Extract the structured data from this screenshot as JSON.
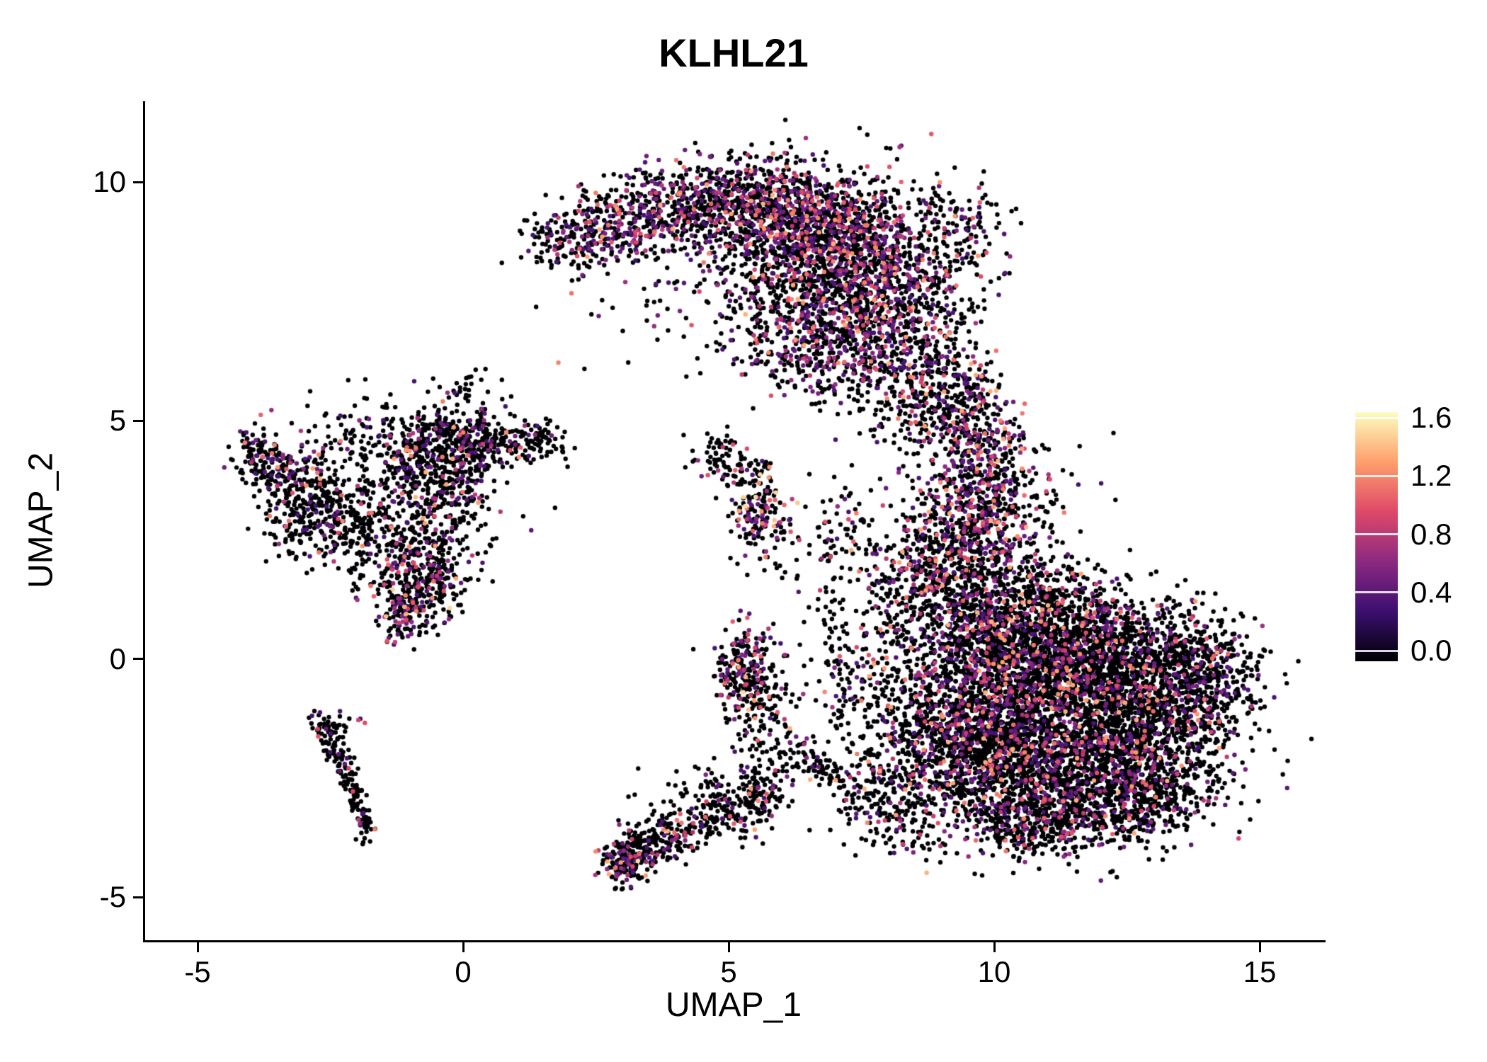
{
  "chart_data": {
    "type": "scatter",
    "title": "KLHL21",
    "xlabel": "UMAP_1",
    "ylabel": "UMAP_2",
    "xlim": [
      -6.0,
      16.2
    ],
    "ylim": [
      -5.9,
      11.7
    ],
    "x_ticks": [
      {
        "v": -5,
        "label": "-5"
      },
      {
        "v": 0,
        "label": "0"
      },
      {
        "v": 5,
        "label": "5"
      },
      {
        "v": 10,
        "label": "10"
      },
      {
        "v": 15,
        "label": "15"
      }
    ],
    "y_ticks": [
      {
        "v": 10,
        "label": "10"
      },
      {
        "v": 5,
        "label": "5"
      },
      {
        "v": 0,
        "label": "0"
      },
      {
        "v": -5,
        "label": "-5"
      }
    ],
    "grid": false,
    "point_radius": 3.2,
    "colorbar": {
      "position": "right",
      "vmin": 0.0,
      "vmax": 1.6,
      "ticks": [
        {
          "v": 1.6,
          "label": "1.6"
        },
        {
          "v": 1.2,
          "label": "1.2"
        },
        {
          "v": 0.8,
          "label": "0.8"
        },
        {
          "v": 0.4,
          "label": "0.4"
        },
        {
          "v": 0.0,
          "label": "0.0"
        }
      ],
      "colormap": "magma",
      "stops": [
        {
          "t": 0.0,
          "c": "#000004"
        },
        {
          "t": 0.2,
          "c": "#3b0f70"
        },
        {
          "t": 0.4,
          "c": "#8c2981"
        },
        {
          "t": 0.6,
          "c": "#de4968"
        },
        {
          "t": 0.8,
          "c": "#fe9f6d"
        },
        {
          "t": 1.0,
          "c": "#fcfdbf"
        }
      ]
    },
    "expression_floor": 0.35,
    "seed": 1337,
    "clusters": [
      {
        "x": 2.0,
        "y": 8.75,
        "sx": 0.45,
        "sy": 0.3,
        "n": 130,
        "p": 0.25
      },
      {
        "x": 3.0,
        "y": 9.1,
        "sx": 0.5,
        "sy": 0.45,
        "n": 220,
        "p": 0.28
      },
      {
        "x": 4.2,
        "y": 9.5,
        "sx": 0.7,
        "sy": 0.45,
        "n": 350,
        "p": 0.3
      },
      {
        "x": 5.5,
        "y": 9.6,
        "sx": 0.7,
        "sy": 0.5,
        "n": 420,
        "p": 0.3
      },
      {
        "x": 6.6,
        "y": 9.2,
        "sx": 0.7,
        "sy": 0.6,
        "n": 500,
        "p": 0.33
      },
      {
        "x": 7.6,
        "y": 8.7,
        "sx": 0.7,
        "sy": 0.7,
        "n": 480,
        "p": 0.33
      },
      {
        "x": 6.1,
        "y": 8.2,
        "sx": 0.9,
        "sy": 0.6,
        "n": 380,
        "p": 0.3
      },
      {
        "x": 7.0,
        "y": 7.4,
        "sx": 0.9,
        "sy": 0.7,
        "n": 430,
        "p": 0.33
      },
      {
        "x": 8.3,
        "y": 7.6,
        "sx": 0.6,
        "sy": 0.8,
        "n": 320,
        "p": 0.33
      },
      {
        "x": 6.4,
        "y": 6.5,
        "sx": 0.7,
        "sy": 0.55,
        "n": 220,
        "p": 0.3
      },
      {
        "x": 7.6,
        "y": 6.2,
        "sx": 0.6,
        "sy": 0.6,
        "n": 200,
        "p": 0.3
      },
      {
        "x": 8.8,
        "y": 6.3,
        "sx": 0.45,
        "sy": 0.8,
        "n": 180,
        "p": 0.28
      },
      {
        "x": 9.3,
        "y": 8.9,
        "sx": 0.45,
        "sy": 0.55,
        "n": 150,
        "p": 0.2
      },
      {
        "x": 4.6,
        "y": 8.2,
        "sx": 1.3,
        "sy": 0.7,
        "n": 60,
        "p": 0.2
      },
      {
        "x": 3.3,
        "y": 7.3,
        "sx": 0.8,
        "sy": 0.7,
        "n": 25,
        "p": 0.15
      },
      {
        "x": 8.4,
        "y": 5.2,
        "sx": 0.5,
        "sy": 0.5,
        "n": 90,
        "p": 0.25
      },
      {
        "x": 9.4,
        "y": 5.4,
        "sx": 0.4,
        "sy": 0.55,
        "n": 150,
        "p": 0.3
      },
      {
        "x": 9.7,
        "y": 4.5,
        "sx": 0.45,
        "sy": 0.6,
        "n": 200,
        "p": 0.35
      },
      {
        "x": 9.8,
        "y": 3.5,
        "sx": 0.5,
        "sy": 0.6,
        "n": 260,
        "p": 0.38
      },
      {
        "x": 9.6,
        "y": 2.5,
        "sx": 0.55,
        "sy": 0.6,
        "n": 280,
        "p": 0.38
      },
      {
        "x": 10.6,
        "y": 3.2,
        "sx": 0.7,
        "sy": 0.9,
        "n": 100,
        "p": 0.22
      },
      {
        "x": 8.8,
        "y": 2.9,
        "sx": 0.5,
        "sy": 0.8,
        "n": 100,
        "p": 0.22
      },
      {
        "x": 8.6,
        "y": 1.7,
        "sx": 0.6,
        "sy": 0.5,
        "n": 140,
        "p": 0.28
      },
      {
        "x": 11.2,
        "y": -1.0,
        "sx": 1.4,
        "sy": 1.0,
        "n": 2200,
        "p": 0.2
      },
      {
        "x": 10.2,
        "y": -2.4,
        "sx": 0.9,
        "sy": 0.7,
        "n": 700,
        "p": 0.2
      },
      {
        "x": 12.2,
        "y": -2.5,
        "sx": 1.0,
        "sy": 0.6,
        "n": 650,
        "p": 0.18
      },
      {
        "x": 13.2,
        "y": -1.2,
        "sx": 0.8,
        "sy": 0.8,
        "n": 550,
        "p": 0.16
      },
      {
        "x": 14.0,
        "y": -0.3,
        "sx": 0.45,
        "sy": 0.6,
        "n": 260,
        "p": 0.14
      },
      {
        "x": 12.4,
        "y": 0.2,
        "sx": 0.9,
        "sy": 0.6,
        "n": 550,
        "p": 0.18
      },
      {
        "x": 11.0,
        "y": 0.4,
        "sx": 0.9,
        "sy": 0.55,
        "n": 520,
        "p": 0.2
      },
      {
        "x": 9.8,
        "y": -0.3,
        "sx": 0.7,
        "sy": 0.9,
        "n": 520,
        "p": 0.24
      },
      {
        "x": 9.0,
        "y": -1.6,
        "sx": 0.6,
        "sy": 0.8,
        "n": 380,
        "p": 0.24
      },
      {
        "x": 9.4,
        "y": 1.2,
        "sx": 0.7,
        "sy": 0.6,
        "n": 320,
        "p": 0.26
      },
      {
        "x": 10.6,
        "y": 1.4,
        "sx": 0.9,
        "sy": 0.45,
        "n": 240,
        "p": 0.2
      },
      {
        "x": 11.6,
        "y": -3.4,
        "sx": 0.9,
        "sy": 0.4,
        "n": 260,
        "p": 0.17
      },
      {
        "x": 10.5,
        "y": -3.5,
        "sx": 0.5,
        "sy": 0.35,
        "n": 150,
        "p": 0.18
      },
      {
        "x": 12.9,
        "y": -2.9,
        "sx": 0.5,
        "sy": 0.4,
        "n": 150,
        "p": 0.14
      },
      {
        "x": 8.0,
        "y": 0.2,
        "sx": 0.5,
        "sy": 0.9,
        "n": 110,
        "p": 0.18
      },
      {
        "x": 7.3,
        "y": -0.7,
        "sx": 0.4,
        "sy": 0.7,
        "n": 70,
        "p": 0.14
      },
      {
        "x": 6.9,
        "y": 1.5,
        "sx": 0.22,
        "sy": 0.9,
        "n": 55,
        "p": 0.12
      },
      {
        "x": 6.3,
        "y": -1.9,
        "x2": 7.5,
        "y2": -3.0,
        "w": 0.18,
        "n": 90,
        "p": 0.12
      },
      {
        "x": 7.9,
        "y": -2.6,
        "sx": 0.5,
        "sy": 0.5,
        "n": 120,
        "p": 0.18
      },
      {
        "x": 8.3,
        "y": -3.4,
        "sx": 0.4,
        "sy": 0.4,
        "n": 90,
        "p": 0.18
      },
      {
        "x": 3.05,
        "y": -4.25,
        "sx": 0.22,
        "sy": 0.28,
        "n": 170,
        "p": 0.25,
        "vmax": 1.5
      },
      {
        "x": 3.55,
        "y": -3.95,
        "sx": 0.3,
        "sy": 0.22,
        "n": 110,
        "p": 0.2
      },
      {
        "x": 4.2,
        "y": -3.6,
        "sx": 0.4,
        "sy": 0.25,
        "n": 100,
        "p": 0.15
      },
      {
        "x": 4.9,
        "y": -3.2,
        "sx": 0.45,
        "sy": 0.3,
        "n": 110,
        "p": 0.15
      },
      {
        "x": 5.5,
        "y": -2.8,
        "sx": 0.35,
        "sy": 0.3,
        "n": 90,
        "p": 0.15
      },
      {
        "x": 4.6,
        "y": -2.7,
        "sx": 0.8,
        "sy": 0.4,
        "n": 55,
        "p": 0.1
      },
      {
        "x": 5.8,
        "y": -2.0,
        "sx": 0.4,
        "sy": 0.45,
        "n": 55,
        "p": 0.14
      },
      {
        "x": 5.35,
        "y": -0.25,
        "sx": 0.28,
        "sy": 0.45,
        "n": 240,
        "p": 0.3,
        "vmax": 1.5
      },
      {
        "x": 5.7,
        "y": -1.1,
        "sx": 0.3,
        "sy": 0.4,
        "n": 55,
        "p": 0.15
      },
      {
        "x": 4.8,
        "y": 4.3,
        "sx": 0.3,
        "sy": 0.25,
        "n": 55,
        "p": 0.15
      },
      {
        "x": 5.35,
        "y": 3.9,
        "sx": 0.28,
        "sy": 0.2,
        "n": 45,
        "p": 0.2
      },
      {
        "x": 5.55,
        "y": 3.1,
        "sx": 0.28,
        "sy": 0.42,
        "n": 140,
        "p": 0.4,
        "vmax": 1.5
      },
      {
        "x": 6.2,
        "y": 2.4,
        "sx": 0.5,
        "sy": 0.5,
        "n": 40,
        "p": 0.18
      },
      {
        "x": 7.4,
        "y": 2.5,
        "sx": 0.3,
        "sy": 0.7,
        "n": 50,
        "p": 0.18
      },
      {
        "x": -3.9,
        "y": 4.2,
        "sx": 0.25,
        "sy": 0.35,
        "n": 110,
        "p": 0.22
      },
      {
        "x": -3.35,
        "y": 3.9,
        "sx": 0.3,
        "sy": 0.3,
        "n": 90,
        "p": 0.2
      },
      {
        "x": -2.8,
        "y": 3.3,
        "sx": 0.4,
        "sy": 0.5,
        "n": 200,
        "p": 0.2
      },
      {
        "x": -2.1,
        "y": 2.85,
        "sx": 0.3,
        "sy": 0.3,
        "n": 80,
        "p": 0.2
      },
      {
        "x": -1.5,
        "y": 3.7,
        "sx": 0.7,
        "sy": 0.7,
        "n": 160,
        "p": 0.16
      },
      {
        "x": -0.7,
        "y": 4.3,
        "sx": 0.6,
        "sy": 0.5,
        "n": 280,
        "p": 0.18
      },
      {
        "x": -0.1,
        "y": 4.6,
        "sx": 0.5,
        "sy": 0.3,
        "n": 180,
        "p": 0.16
      },
      {
        "x": 0.7,
        "y": 4.5,
        "sx": 0.5,
        "sy": 0.3,
        "n": 130,
        "p": 0.16
      },
      {
        "x": -0.3,
        "y": 3.3,
        "sx": 0.55,
        "sy": 0.6,
        "n": 200,
        "p": 0.18
      },
      {
        "x": -0.9,
        "y": 2.3,
        "sx": 0.45,
        "sy": 0.5,
        "n": 170,
        "p": 0.2
      },
      {
        "x": -0.55,
        "y": 1.6,
        "sx": 0.35,
        "sy": 0.4,
        "n": 140,
        "p": 0.22
      },
      {
        "x": -1.1,
        "y": 1.05,
        "sx": 0.3,
        "sy": 0.35,
        "n": 170,
        "p": 0.35,
        "vmax": 1.5
      },
      {
        "x": 0.1,
        "y": 5.4,
        "sx": 0.4,
        "sy": 0.4,
        "n": 40,
        "p": 0.1
      },
      {
        "x": 1.5,
        "y": 4.5,
        "sx": 0.3,
        "sy": 0.2,
        "n": 45,
        "p": 0.15
      },
      {
        "x": -2.2,
        "y": 4.9,
        "sx": 0.7,
        "sy": 0.4,
        "n": 45,
        "p": 0.12
      },
      {
        "x": -3.1,
        "y": 2.6,
        "sx": 0.4,
        "sy": 0.3,
        "n": 60,
        "p": 0.15
      },
      {
        "x": -1.8,
        "y": 2.1,
        "sx": 0.5,
        "sy": 0.5,
        "n": 65,
        "p": 0.15
      },
      {
        "x": -2.62,
        "y": -1.45,
        "x2": -2.1,
        "y2": -2.5,
        "w": 0.12,
        "n": 90,
        "p": 0.07
      },
      {
        "x": -2.1,
        "y": -2.5,
        "x2": -1.78,
        "y2": -3.75,
        "w": 0.1,
        "n": 85,
        "p": 0.07
      },
      {
        "x": -2.5,
        "y": -1.35,
        "sx": 0.18,
        "sy": 0.15,
        "n": 30,
        "p": 0.1
      },
      {
        "x": -1.95,
        "y": -1.3,
        "sx": 0.05,
        "sy": 0.05,
        "n": 3,
        "p": 0.6
      }
    ]
  }
}
